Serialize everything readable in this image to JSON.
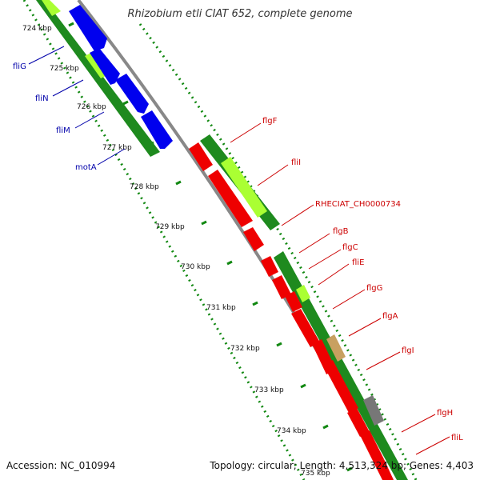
{
  "title": "Rhizobium etli CIAT 652, complete genome",
  "accession": "Accession: NC_010994",
  "topology": "Topology: circular; Length: 4,513,324 bp; Genes: 4,403",
  "colors": {
    "cds_blue": "#0000ee",
    "cds_red": "#ee0000",
    "track_green": "#1e8a1e",
    "light_green": "#aaff33",
    "tan": "#c8a060",
    "gray": "#777777",
    "label_blue": "#0000aa",
    "label_red": "#cc0000",
    "tick_green": "#118811"
  },
  "kbp_labels": [
    "724 kbp",
    "725 kbp",
    "726 kbp",
    "727 kbp",
    "728 kbp",
    "729 kbp",
    "730 kbp",
    "731 kbp",
    "732 kbp",
    "733 kbp",
    "734 kbp",
    "735 kbp"
  ],
  "left_genes": [
    "fliG",
    "fliN",
    "fliM",
    "motA"
  ],
  "right_genes": [
    "flgF",
    "fliI",
    "RHECIAT_CH0000734",
    "flgB",
    "flgC",
    "fliE",
    "flgG",
    "flgA",
    "flgI",
    "flgH",
    "fliL"
  ]
}
